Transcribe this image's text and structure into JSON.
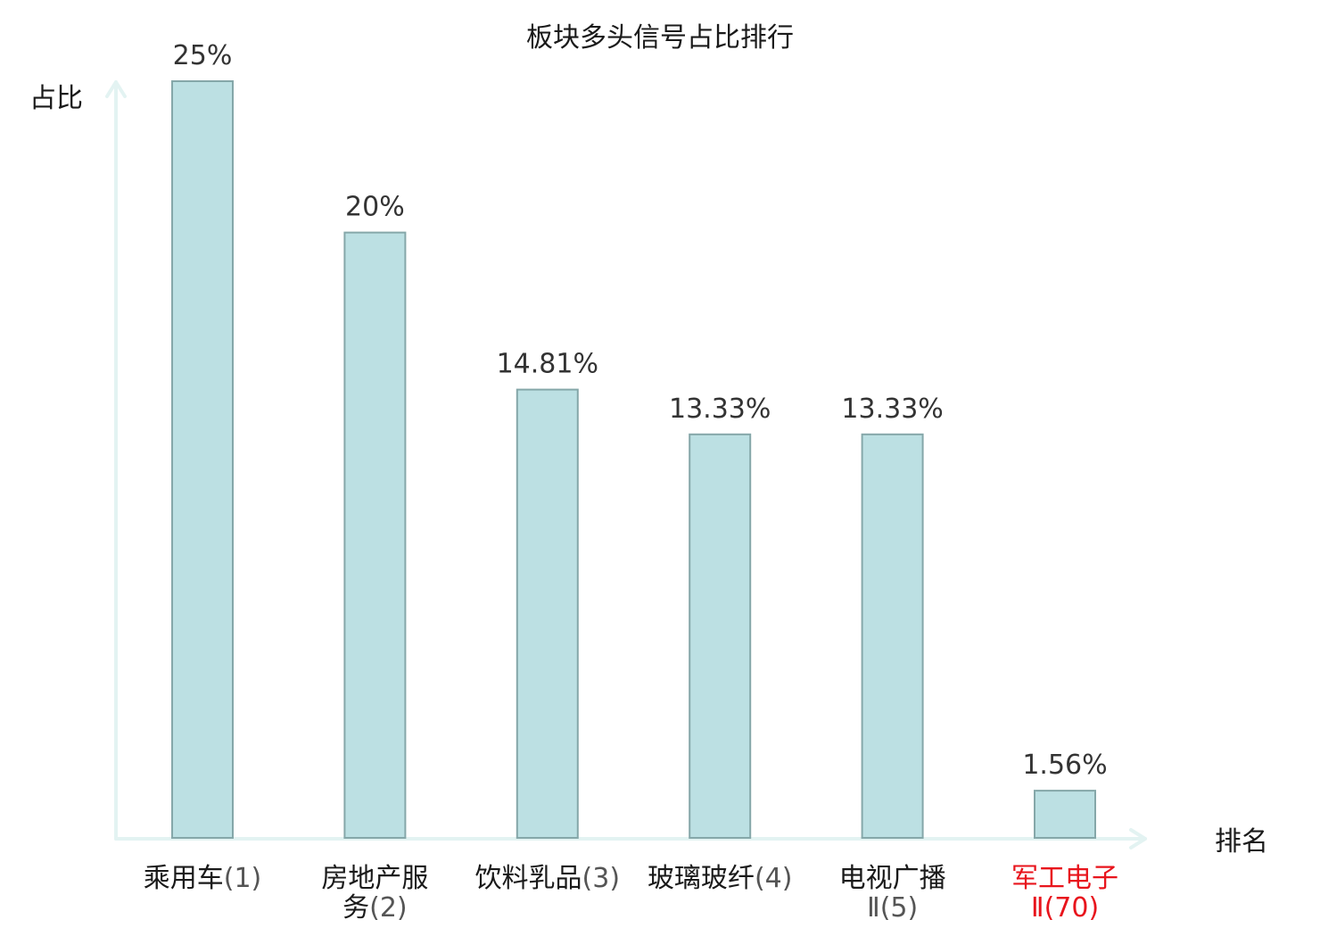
{
  "colors": {
    "bar_fill": "#bce0e3",
    "bar_stroke": "#85a7a9",
    "axis": "#e3f3f2",
    "text": "#1a1a1a",
    "value_text": "#333333",
    "highlight": "#e8141c"
  },
  "chart_data": {
    "type": "bar",
    "title": "板块多头信号占比排行",
    "xlabel": "排名",
    "ylabel": "占比",
    "grid": false,
    "ylim": [
      0,
      26
    ],
    "categories": [
      {
        "name_lines": [
          "乘用车"
        ],
        "rank_line": "(1)",
        "highlight": false
      },
      {
        "name_lines": [
          "房地产服",
          "务"
        ],
        "rank_line": "(2)",
        "highlight": false
      },
      {
        "name_lines": [
          "饮料乳品"
        ],
        "rank_line": "(3)",
        "highlight": false
      },
      {
        "name_lines": [
          "玻璃玻纤"
        ],
        "rank_line": "(4)",
        "highlight": false
      },
      {
        "name_lines": [
          "电视广播"
        ],
        "rank_line": "Ⅱ(5)",
        "highlight": false
      },
      {
        "name_lines": [
          "军工电子"
        ],
        "rank_line": "Ⅱ(70)",
        "highlight": true
      }
    ],
    "values": [
      25,
      20,
      14.81,
      13.33,
      13.33,
      1.56
    ],
    "value_labels": [
      "25%",
      "20%",
      "14.81%",
      "13.33%",
      "13.33%",
      "1.56%"
    ]
  }
}
